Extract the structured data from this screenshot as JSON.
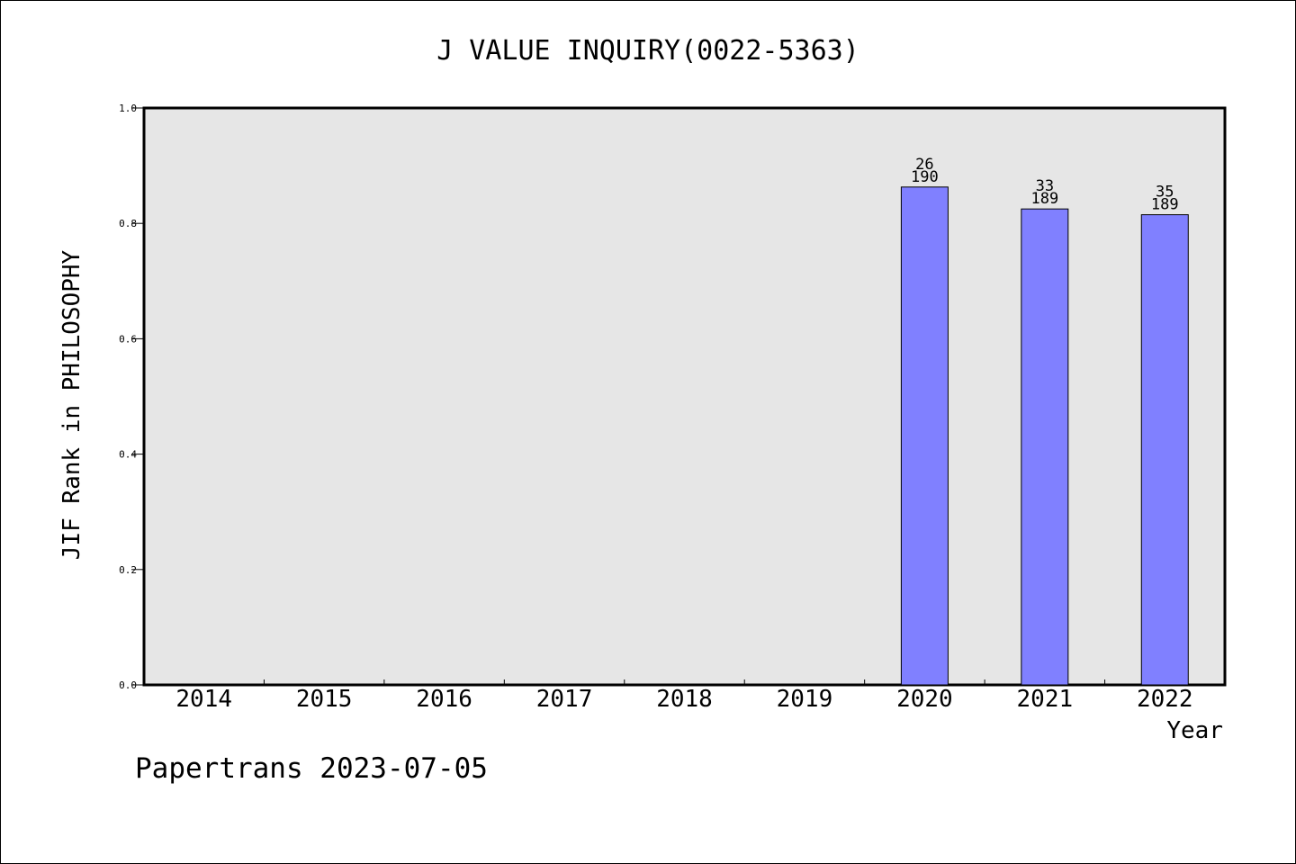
{
  "chart_data": {
    "type": "bar",
    "title": "J VALUE INQUIRY(0022-5363)",
    "xlabel": "Year",
    "ylabel": "JIF Rank in PHILOSOPHY",
    "categories": [
      "2014",
      "2015",
      "2016",
      "2017",
      "2018",
      "2019",
      "2020",
      "2021",
      "2022"
    ],
    "values": [
      null,
      null,
      null,
      null,
      null,
      null,
      0.863,
      0.825,
      0.815
    ],
    "bar_labels": [
      null,
      null,
      null,
      null,
      null,
      null,
      {
        "rank": "26",
        "total": "190"
      },
      {
        "rank": "33",
        "total": "189"
      },
      {
        "rank": "35",
        "total": "189"
      }
    ],
    "ylim": [
      0,
      1.0
    ],
    "yticks": [
      "0.0",
      "0.2",
      "0.4",
      "0.6",
      "0.8",
      "1.0"
    ],
    "grid": false,
    "colors": {
      "bar": "#8080ff",
      "plot_background": "#e6e6e6"
    }
  },
  "footer": {
    "text": "Papertrans 2023-07-05"
  }
}
